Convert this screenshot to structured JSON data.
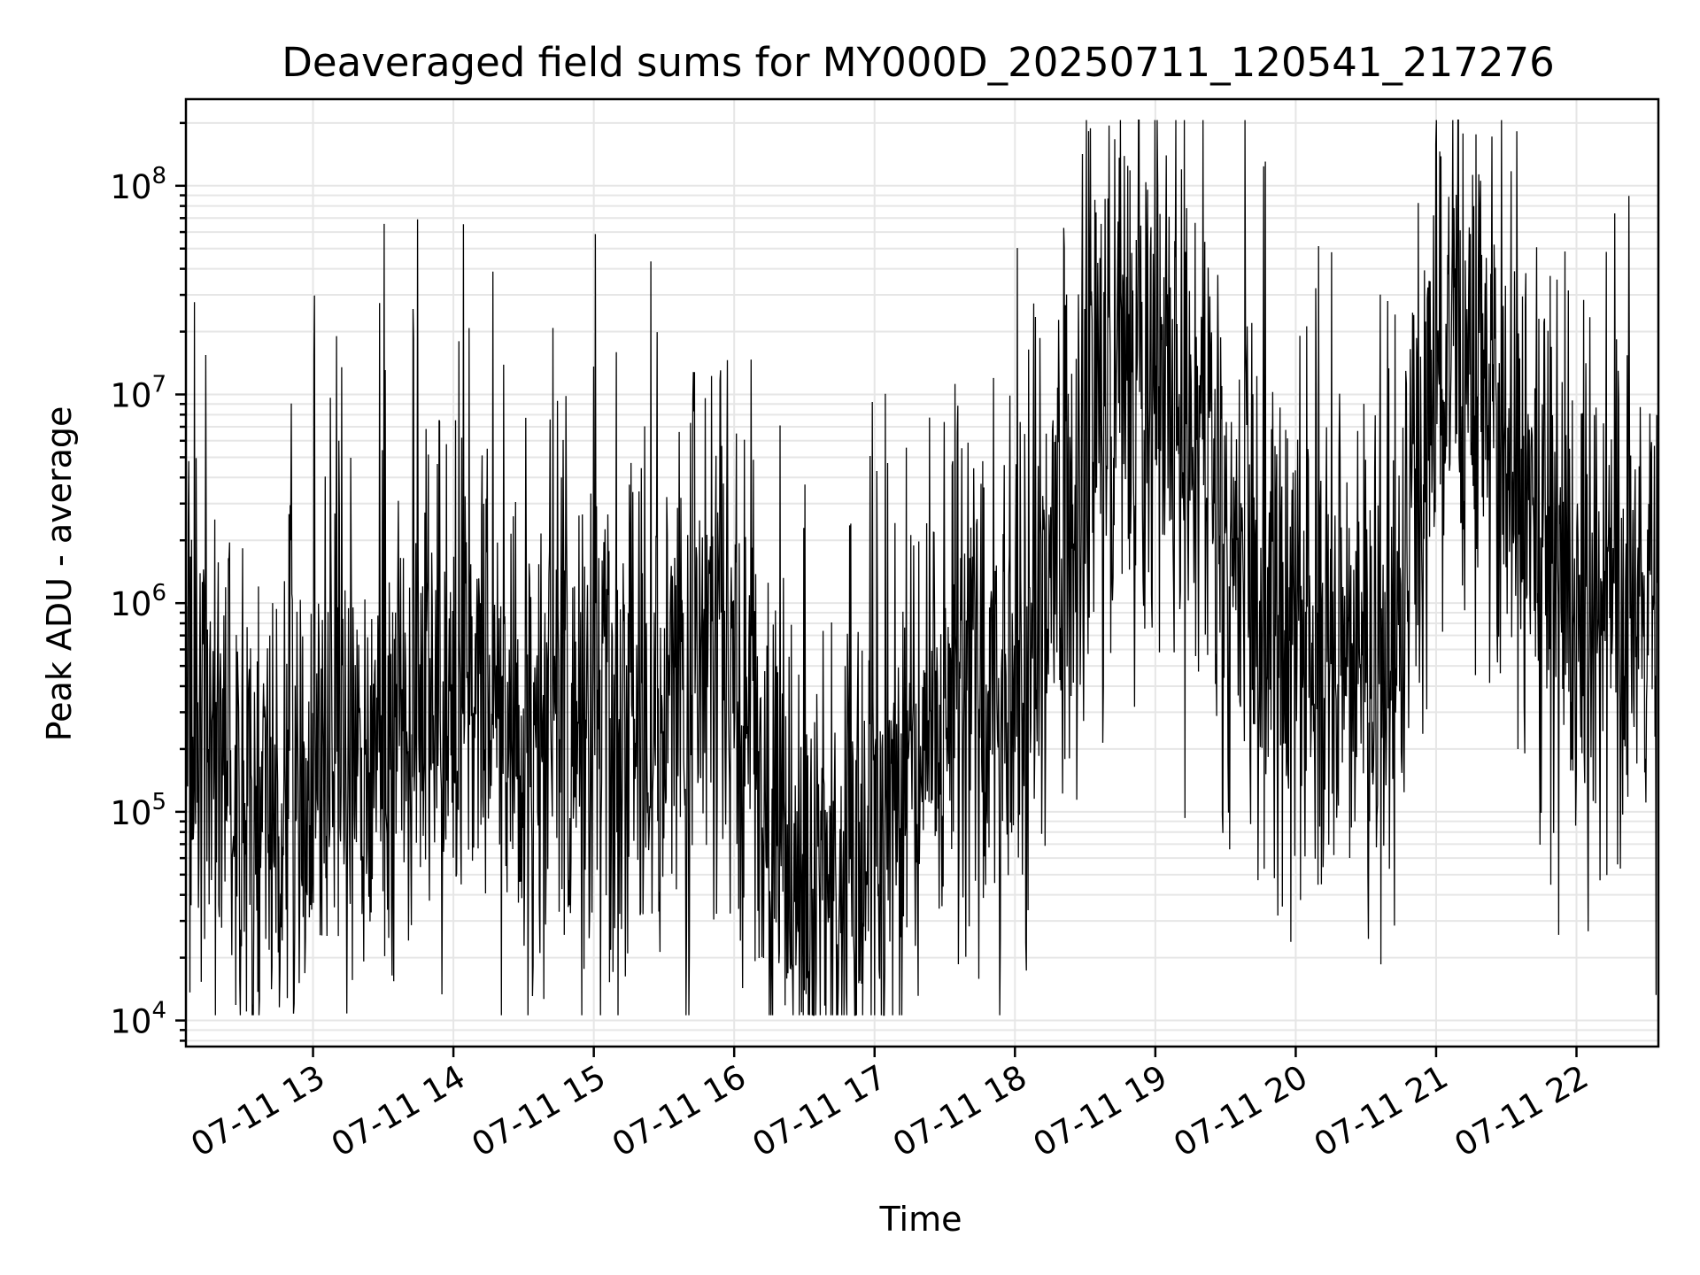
{
  "chart_data": {
    "type": "line",
    "title": "Deaveraged field sums for MY000D_20250711_120541_217276",
    "xlabel": "Time",
    "ylabel": "Peak ADU - average",
    "yscale": "log",
    "grid": true,
    "xlim": [
      "2025-07-11T12:05:41",
      "2025-07-11T22:35:00"
    ],
    "ylim": [
      7500,
      260000000
    ],
    "x_ticks": [
      "07-11 13",
      "07-11 14",
      "07-11 15",
      "07-11 16",
      "07-11 17",
      "07-11 18",
      "07-11 19",
      "07-11 20",
      "07-11 21",
      "07-11 22"
    ],
    "x_tick_times": [
      "2025-07-11T13:00",
      "2025-07-11T14:00",
      "2025-07-11T15:00",
      "2025-07-11T16:00",
      "2025-07-11T17:00",
      "2025-07-11T18:00",
      "2025-07-11T19:00",
      "2025-07-11T20:00",
      "2025-07-11T21:00",
      "2025-07-11T22:00"
    ],
    "y_ticks": [
      {
        "value": 10000,
        "base": "10",
        "exp": "4"
      },
      {
        "value": 100000,
        "base": "10",
        "exp": "5"
      },
      {
        "value": 1000000,
        "base": "10",
        "exp": "6"
      },
      {
        "value": 10000000,
        "base": "10",
        "exp": "7"
      },
      {
        "value": 100000000,
        "base": "10",
        "exp": "8"
      }
    ],
    "series": [
      {
        "color": "#000000",
        "points": [
          [
            "2025-07-11T12:05",
            250000
          ],
          [
            "2025-07-11T12:20",
            170000
          ],
          [
            "2025-07-11T12:35",
            90000
          ],
          [
            "2025-07-11T12:50",
            160000
          ],
          [
            "2025-07-11T13:05",
            200000
          ],
          [
            "2025-07-11T13:20",
            230000
          ],
          [
            "2025-07-11T13:35",
            280000
          ],
          [
            "2025-07-11T13:50",
            420000
          ],
          [
            "2025-07-11T14:05",
            500000
          ],
          [
            "2025-07-11T14:20",
            420000
          ],
          [
            "2025-07-11T14:35",
            230000
          ],
          [
            "2025-07-11T14:50",
            200000
          ],
          [
            "2025-07-11T15:05",
            260000
          ],
          [
            "2025-07-11T15:20",
            220000
          ],
          [
            "2025-07-11T15:35",
            420000
          ],
          [
            "2025-07-11T15:50",
            650000
          ],
          [
            "2025-07-11T16:05",
            330000
          ],
          [
            "2025-07-11T16:20",
            60000
          ],
          [
            "2025-07-11T16:35",
            45000
          ],
          [
            "2025-07-11T16:50",
            55000
          ],
          [
            "2025-07-11T17:05",
            90000
          ],
          [
            "2025-07-11T17:20",
            220000
          ],
          [
            "2025-07-11T17:35",
            700000
          ],
          [
            "2025-07-11T17:50",
            280000
          ],
          [
            "2025-07-11T18:05",
            500000
          ],
          [
            "2025-07-11T18:20",
            2000000
          ],
          [
            "2025-07-11T18:35",
            7000000
          ],
          [
            "2025-07-11T18:50",
            15000000
          ],
          [
            "2025-07-11T19:05",
            12000000
          ],
          [
            "2025-07-11T19:20",
            6000000
          ],
          [
            "2025-07-11T19:35",
            1500000
          ],
          [
            "2025-07-11T19:50",
            800000
          ],
          [
            "2025-07-11T20:05",
            600000
          ],
          [
            "2025-07-11T20:20",
            500000
          ],
          [
            "2025-07-11T20:35",
            600000
          ],
          [
            "2025-07-11T20:50",
            3000000
          ],
          [
            "2025-07-11T21:05",
            12000000
          ],
          [
            "2025-07-11T21:20",
            10000000
          ],
          [
            "2025-07-11T21:35",
            5000000
          ],
          [
            "2025-07-11T21:50",
            1500000
          ],
          [
            "2025-07-11T22:05",
            800000
          ],
          [
            "2025-07-11T22:20",
            1000000
          ],
          [
            "2025-07-11T22:35",
            1200000
          ]
        ]
      }
    ]
  }
}
